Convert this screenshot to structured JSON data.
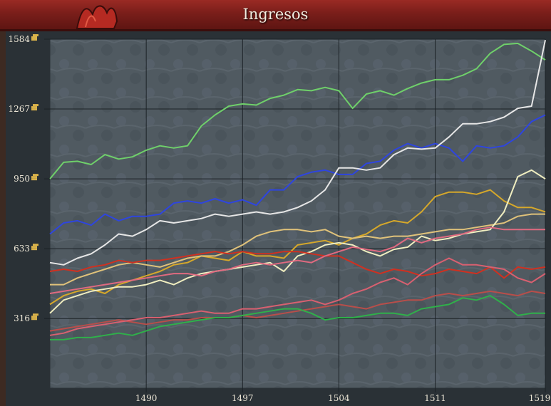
{
  "window": {
    "title": "Ingresos"
  },
  "chart_data": {
    "type": "line",
    "title": "Ingresos",
    "xlabel": "",
    "ylabel": "",
    "x_ticks": [
      "1490",
      "1497",
      "1504",
      "1511",
      "1519"
    ],
    "y_ticks": [
      "1584",
      "1267",
      "950",
      "633",
      "316"
    ],
    "xlim": [
      1483,
      1519
    ],
    "ylim": [
      0,
      1584
    ],
    "grid": true,
    "y_icon": "gold-coin-icon",
    "series": [
      {
        "color": "#6fd06a",
        "x": [
          1483,
          1484,
          1485,
          1486,
          1487,
          1488,
          1489,
          1490,
          1491,
          1492,
          1493,
          1494,
          1495,
          1496,
          1497,
          1498,
          1499,
          1500,
          1501,
          1502,
          1503,
          1504,
          1505,
          1506,
          1507,
          1508,
          1509,
          1510,
          1511,
          1512,
          1513,
          1514,
          1515,
          1516,
          1517,
          1518,
          1519
        ],
        "values": [
          950,
          1025,
          1030,
          1015,
          1060,
          1040,
          1050,
          1080,
          1100,
          1090,
          1100,
          1190,
          1240,
          1280,
          1290,
          1285,
          1315,
          1330,
          1355,
          1350,
          1365,
          1350,
          1270,
          1335,
          1350,
          1330,
          1360,
          1385,
          1400,
          1400,
          1420,
          1450,
          1520,
          1560,
          1565,
          1530,
          1490
        ]
      },
      {
        "color": "#2e45e0",
        "x": [
          1483,
          1484,
          1485,
          1486,
          1487,
          1488,
          1489,
          1490,
          1491,
          1492,
          1493,
          1494,
          1495,
          1496,
          1497,
          1498,
          1499,
          1500,
          1501,
          1502,
          1503,
          1504,
          1505,
          1506,
          1507,
          1508,
          1509,
          1510,
          1511,
          1512,
          1513,
          1514,
          1515,
          1516,
          1517,
          1518,
          1519
        ],
        "values": [
          700,
          750,
          760,
          740,
          790,
          760,
          780,
          780,
          790,
          840,
          850,
          840,
          860,
          840,
          855,
          830,
          900,
          900,
          960,
          980,
          990,
          970,
          970,
          1020,
          1030,
          1080,
          1110,
          1090,
          1110,
          1090,
          1030,
          1100,
          1090,
          1100,
          1140,
          1210,
          1240
        ]
      },
      {
        "color": "#e6e6e6",
        "x": [
          1483,
          1484,
          1485,
          1486,
          1487,
          1488,
          1489,
          1490,
          1491,
          1492,
          1493,
          1494,
          1495,
          1496,
          1497,
          1498,
          1499,
          1500,
          1501,
          1502,
          1503,
          1504,
          1505,
          1506,
          1507,
          1508,
          1509,
          1510,
          1511,
          1512,
          1513,
          1514,
          1515,
          1516,
          1517,
          1518,
          1519
        ],
        "values": [
          570,
          560,
          590,
          610,
          650,
          700,
          690,
          720,
          760,
          750,
          760,
          770,
          790,
          780,
          790,
          800,
          790,
          800,
          820,
          850,
          900,
          1000,
          1000,
          990,
          1000,
          1060,
          1090,
          1085,
          1090,
          1140,
          1200,
          1200,
          1210,
          1230,
          1270,
          1280,
          1580
        ]
      },
      {
        "color": "#d6a82a",
        "x": [
          1483,
          1484,
          1485,
          1486,
          1487,
          1488,
          1489,
          1490,
          1491,
          1492,
          1493,
          1494,
          1495,
          1496,
          1497,
          1498,
          1499,
          1500,
          1501,
          1502,
          1503,
          1504,
          1505,
          1506,
          1507,
          1508,
          1509,
          1510,
          1511,
          1512,
          1513,
          1514,
          1515,
          1516,
          1517,
          1518,
          1519
        ],
        "values": [
          380,
          420,
          440,
          450,
          430,
          470,
          490,
          510,
          530,
          560,
          570,
          600,
          590,
          580,
          620,
          600,
          600,
          590,
          650,
          660,
          670,
          650,
          680,
          700,
          740,
          760,
          750,
          800,
          870,
          890,
          890,
          880,
          900,
          850,
          820,
          820,
          800
        ]
      },
      {
        "color": "#e0c27a",
        "x": [
          1483,
          1484,
          1485,
          1486,
          1487,
          1488,
          1489,
          1490,
          1491,
          1492,
          1493,
          1494,
          1495,
          1496,
          1497,
          1498,
          1499,
          1500,
          1501,
          1502,
          1503,
          1504,
          1505,
          1506,
          1507,
          1508,
          1509,
          1510,
          1511,
          1512,
          1513,
          1514,
          1515,
          1516,
          1517,
          1518,
          1519
        ],
        "values": [
          470,
          470,
          500,
          520,
          540,
          560,
          570,
          560,
          550,
          570,
          590,
          600,
          600,
          620,
          650,
          690,
          710,
          720,
          720,
          710,
          720,
          690,
          680,
          690,
          680,
          690,
          690,
          700,
          710,
          720,
          720,
          730,
          740,
          750,
          780,
          790,
          790
        ]
      },
      {
        "color": "#f0eec0",
        "x": [
          1483,
          1484,
          1485,
          1486,
          1487,
          1488,
          1489,
          1490,
          1491,
          1492,
          1493,
          1494,
          1495,
          1496,
          1497,
          1498,
          1499,
          1500,
          1501,
          1502,
          1503,
          1504,
          1505,
          1506,
          1507,
          1508,
          1509,
          1510,
          1511,
          1512,
          1513,
          1514,
          1515,
          1516,
          1517,
          1518,
          1519
        ],
        "values": [
          340,
          400,
          420,
          440,
          450,
          460,
          460,
          470,
          490,
          470,
          500,
          520,
          530,
          540,
          550,
          560,
          570,
          530,
          600,
          620,
          650,
          660,
          650,
          620,
          600,
          630,
          640,
          690,
          670,
          680,
          700,
          710,
          720,
          800,
          960,
          990,
          950
        ]
      },
      {
        "color": "#d03020",
        "x": [
          1483,
          1484,
          1485,
          1486,
          1487,
          1488,
          1489,
          1490,
          1491,
          1492,
          1493,
          1494,
          1495,
          1496,
          1497,
          1498,
          1499,
          1500,
          1501,
          1502,
          1503,
          1504,
          1505,
          1506,
          1507,
          1508,
          1509,
          1510,
          1511,
          1512,
          1513,
          1514,
          1515,
          1516,
          1517,
          1518,
          1519
        ],
        "values": [
          530,
          540,
          530,
          550,
          560,
          580,
          570,
          580,
          580,
          590,
          600,
          610,
          620,
          610,
          620,
          610,
          610,
          620,
          620,
          610,
          600,
          600,
          570,
          540,
          520,
          540,
          530,
          510,
          520,
          540,
          530,
          520,
          550,
          500,
          550,
          540,
          550
        ]
      },
      {
        "color": "#e06a80",
        "x": [
          1483,
          1484,
          1485,
          1486,
          1487,
          1488,
          1489,
          1490,
          1491,
          1492,
          1493,
          1494,
          1495,
          1496,
          1497,
          1498,
          1499,
          1500,
          1501,
          1502,
          1503,
          1504,
          1505,
          1506,
          1507,
          1508,
          1509,
          1510,
          1511,
          1512,
          1513,
          1514,
          1515,
          1516,
          1517,
          1518,
          1519
        ],
        "values": [
          430,
          440,
          450,
          460,
          470,
          480,
          490,
          500,
          510,
          520,
          520,
          510,
          530,
          540,
          560,
          570,
          560,
          570,
          580,
          570,
          600,
          620,
          640,
          630,
          620,
          640,
          680,
          660,
          680,
          690,
          700,
          720,
          730,
          720,
          720,
          720,
          720
        ]
      },
      {
        "color": "#b84e4a",
        "x": [
          1483,
          1484,
          1485,
          1486,
          1487,
          1488,
          1489,
          1490,
          1491,
          1492,
          1493,
          1494,
          1495,
          1496,
          1497,
          1498,
          1499,
          1500,
          1501,
          1502,
          1503,
          1504,
          1505,
          1506,
          1507,
          1508,
          1509,
          1510,
          1511,
          1512,
          1513,
          1514,
          1515,
          1516,
          1517,
          1518,
          1519
        ],
        "values": [
          260,
          270,
          280,
          290,
          300,
          310,
          300,
          290,
          300,
          310,
          310,
          320,
          320,
          320,
          330,
          320,
          330,
          340,
          350,
          360,
          370,
          380,
          370,
          360,
          380,
          390,
          400,
          400,
          420,
          430,
          420,
          430,
          440,
          430,
          420,
          440,
          430
        ]
      },
      {
        "color": "#d86070",
        "x": [
          1483,
          1484,
          1485,
          1486,
          1487,
          1488,
          1489,
          1490,
          1491,
          1492,
          1493,
          1494,
          1495,
          1496,
          1497,
          1498,
          1499,
          1500,
          1501,
          1502,
          1503,
          1504,
          1505,
          1506,
          1507,
          1508,
          1509,
          1510,
          1511,
          1512,
          1513,
          1514,
          1515,
          1516,
          1517,
          1518,
          1519
        ],
        "values": [
          240,
          250,
          270,
          280,
          290,
          300,
          310,
          320,
          320,
          330,
          340,
          350,
          340,
          340,
          360,
          360,
          370,
          380,
          390,
          400,
          380,
          400,
          430,
          450,
          480,
          500,
          470,
          520,
          560,
          590,
          560,
          560,
          550,
          540,
          500,
          480,
          520
        ]
      },
      {
        "color": "#2fb04a",
        "x": [
          1483,
          1484,
          1485,
          1486,
          1487,
          1488,
          1489,
          1490,
          1491,
          1492,
          1493,
          1494,
          1495,
          1496,
          1497,
          1498,
          1499,
          1500,
          1501,
          1502,
          1503,
          1504,
          1505,
          1506,
          1507,
          1508,
          1509,
          1510,
          1511,
          1512,
          1513,
          1514,
          1515,
          1516,
          1517,
          1518,
          1519
        ],
        "values": [
          220,
          220,
          230,
          230,
          240,
          250,
          240,
          260,
          280,
          290,
          300,
          310,
          320,
          320,
          330,
          340,
          350,
          360,
          360,
          340,
          310,
          320,
          320,
          330,
          340,
          340,
          330,
          360,
          370,
          380,
          410,
          400,
          420,
          380,
          330,
          340,
          340
        ]
      }
    ]
  }
}
